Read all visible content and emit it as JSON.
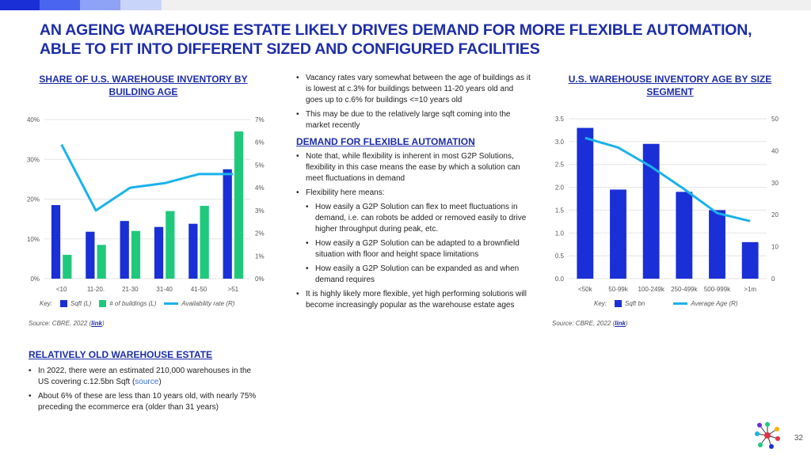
{
  "title": "AN AGEING WAREHOUSE ESTATE LIKELY DRIVES DEMAND FOR MORE FLEXIBLE AUTOMATION, ABLE TO FIT INTO DIFFERENT SIZED AND CONFIGURED FACILITIES",
  "left_chart": {
    "title": "SHARE OF U.S. WAREHOUSE INVENTORY BY BUILDING AGE",
    "key_label": "Key:",
    "legend": [
      "Sqft (L)",
      "# of buildings (L)",
      "Availability rate (R)"
    ],
    "source_prefix": "Source: CBRE, 2022 (",
    "source_link": "link",
    "source_suffix": ")"
  },
  "right_chart": {
    "title": "U.S. WAREHOUSE INVENTORY AGE BY SIZE SEGMENT",
    "key_label": "Key:",
    "legend": [
      "Sqft bn",
      "Average Age (R)"
    ],
    "source_prefix": "Source: CBRE, 2022 (",
    "source_link": "link",
    "source_suffix": ")"
  },
  "chart_data": [
    {
      "type": "bar",
      "title": "SHARE OF U.S. WAREHOUSE INVENTORY BY BUILDING AGE",
      "categories": [
        "<10",
        "11-20.",
        "21-30",
        "31-40",
        "41-50",
        ">51"
      ],
      "y_left_ticks": [
        "0%",
        "10%",
        "20%",
        "30%",
        "40%"
      ],
      "y_right_ticks": [
        "0%",
        "1%",
        "2%",
        "3%",
        "4%",
        "5%",
        "6%",
        "7%"
      ],
      "ylim_left": [
        0,
        40
      ],
      "ylim_right": [
        0,
        7
      ],
      "series": [
        {
          "name": "Sqft (L)",
          "type": "bar",
          "axis": "left",
          "color": "#1a2fd6",
          "values": [
            18.5,
            11.8,
            14.5,
            13.0,
            13.8,
            27.5
          ]
        },
        {
          "name": "# of buildings (L)",
          "type": "bar",
          "axis": "left",
          "color": "#1fc97c",
          "values": [
            6.0,
            8.5,
            12.0,
            17.0,
            18.3,
            37.0
          ]
        },
        {
          "name": "Availability rate (R)",
          "type": "line",
          "axis": "right",
          "color": "#1ab2ec",
          "values": [
            5.9,
            3.0,
            4.0,
            4.2,
            4.6,
            4.6
          ]
        }
      ],
      "grid": "horizontal"
    },
    {
      "type": "bar",
      "title": "U.S. WAREHOUSE INVENTORY AGE BY SIZE SEGMENT",
      "categories": [
        "<50k",
        "50-99k",
        "100-249k",
        "250-499k",
        "500-999k",
        ">1m"
      ],
      "y_left_ticks": [
        "0.0",
        "0.5",
        "1.0",
        "1.5",
        "2.0",
        "2.5",
        "3.0",
        "3.5"
      ],
      "y_right_ticks": [
        "0",
        "10",
        "20",
        "30",
        "40",
        "50"
      ],
      "ylim_left": [
        0,
        3.5
      ],
      "ylim_right": [
        0,
        50
      ],
      "series": [
        {
          "name": "Sqft bn",
          "type": "bar",
          "axis": "left",
          "color": "#1a2fd6",
          "values": [
            3.3,
            1.95,
            2.95,
            1.9,
            1.5,
            0.8
          ]
        },
        {
          "name": "Average Age (R)",
          "type": "line",
          "axis": "right",
          "color": "#1ab2ec",
          "values": [
            44,
            41,
            35,
            28,
            20.5,
            18
          ]
        }
      ],
      "grid": "horizontal"
    }
  ],
  "middle": {
    "bullets_top": [
      "Vacancy rates vary somewhat between the age of buildings as it is lowest at c.3% for buildings between 11-20 years old and goes up to c.6% for buildings <=10 years old",
      "This may be due to the relatively large sqft coming into the market recently"
    ],
    "heading": "DEMAND FOR FLEXIBLE AUTOMATION",
    "bullets": [
      "Note that, while flexibility is inherent in most G2P Solutions, flexibility in this case means the ease by which a solution can meet fluctuations in demand",
      "Flexibility here means:"
    ],
    "sub_bullets": [
      "How easily a G2P Solution can flex to meet fluctuations in demand, i.e. can robots be added or removed easily to drive higher throughput during peak, etc.",
      "How easily a G2P Solution can be adapted to a brownfield situation with floor and height space limitations",
      "How easily a G2P Solution can be expanded as and when demand requires"
    ],
    "bullet_last": "It is highly likely more flexible, yet high performing solutions will become increasingly popular as the warehouse estate ages"
  },
  "bottom_left": {
    "heading": "RELATIVELY OLD WAREHOUSE ESTATE",
    "bullet1_prefix": "In 2022, there were an estimated 210,000 warehouses in the US covering c.12.5bn Sqft (",
    "bullet1_link": "source",
    "bullet1_suffix": ")",
    "bullet2": "About 6% of these are less than 10 years old, with nearly 75% preceding the ecommerce era (older than 31 years)"
  },
  "page_number": "32",
  "colors": {
    "brand": "#1c2da8",
    "bar_primary": "#1a2fd6",
    "bar_secondary": "#1fc97c",
    "line": "#1ab2ec"
  },
  "bullet_char": "•"
}
